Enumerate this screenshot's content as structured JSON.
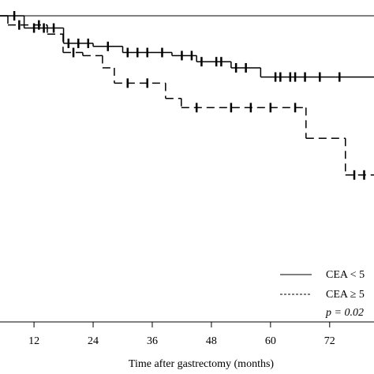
{
  "chart_data": {
    "type": "step",
    "x_label": "Time after gastrectomy (months)",
    "xlim": [
      5.1,
      81
    ],
    "ylim": [
      0,
      1
    ],
    "xticks": [
      12,
      24,
      36,
      48,
      60,
      72
    ],
    "annotation": "p = 0.02",
    "series": [
      {
        "name": "CEA < 5",
        "color": "#000000",
        "dash": "solid",
        "x": [
          5.1,
          10,
          18,
          24,
          30,
          40,
          45,
          52,
          58
        ],
        "values": [
          1.0,
          0.96,
          0.91,
          0.9,
          0.88,
          0.87,
          0.85,
          0.83,
          0.8
        ],
        "censored": [
          8,
          12,
          14,
          16,
          19,
          21,
          23,
          27,
          31,
          33,
          35,
          38,
          42,
          44,
          46,
          49,
          50,
          53,
          55,
          61,
          62,
          64,
          65,
          67,
          70,
          74
        ]
      },
      {
        "name": "CEA ≥ 5",
        "color": "#000000",
        "dash": "dashed",
        "x": [
          5.1,
          6.7,
          14.7,
          17.9,
          21.9,
          25.9,
          28.3,
          38.7,
          41.9,
          67.2,
          75.2
        ],
        "values": [
          1.0,
          0.97,
          0.94,
          0.88,
          0.87,
          0.83,
          0.78,
          0.73,
          0.7,
          0.6,
          0.48
        ],
        "censored": [
          9,
          13,
          20,
          31,
          35,
          45,
          52,
          56,
          60,
          65,
          77,
          79
        ]
      }
    ]
  }
}
